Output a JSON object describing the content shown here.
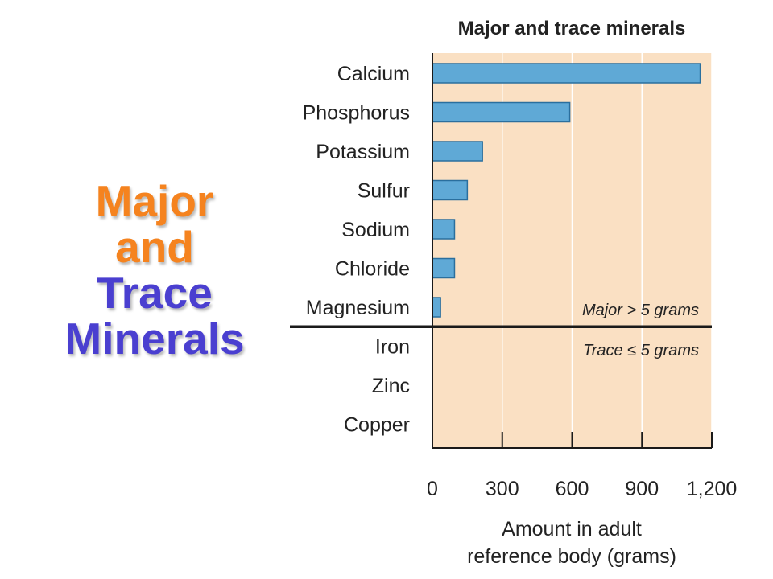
{
  "slide": {
    "title_lines": [
      {
        "text": "Major",
        "color": "#f5831f"
      },
      {
        "text": "and",
        "color": "#f5831f"
      },
      {
        "text": "Trace",
        "color": "#4a3fd0"
      },
      {
        "text": "Minerals",
        "color": "#4a3fd0"
      }
    ]
  },
  "chart_data": {
    "type": "bar",
    "orientation": "horizontal",
    "title": "Major and trace minerals",
    "categories": [
      "Calcium",
      "Phosphorus",
      "Potassium",
      "Sulfur",
      "Sodium",
      "Chloride",
      "Magnesium",
      "Iron",
      "Zinc",
      "Copper"
    ],
    "values": [
      1150,
      590,
      215,
      150,
      95,
      95,
      35,
      0,
      0,
      0
    ],
    "xlabel_lines": [
      "Amount in adult",
      "reference body (grams)"
    ],
    "ylabel": "",
    "xlim": [
      0,
      1200
    ],
    "xticks": [
      0,
      300,
      600,
      900,
      1200
    ],
    "xtick_labels": [
      "0",
      "300",
      "600",
      "900",
      "1,200"
    ],
    "grid": "vertical",
    "annotations": {
      "major": "Major > 5 grams",
      "trace": "Trace ≤ 5 grams"
    },
    "colors": {
      "bar": "#5fa9d6",
      "bar_edge": "#2a6f9e",
      "background": "#fae0c3",
      "grid": "#ffffff",
      "axis": "#1a1a1a"
    }
  }
}
